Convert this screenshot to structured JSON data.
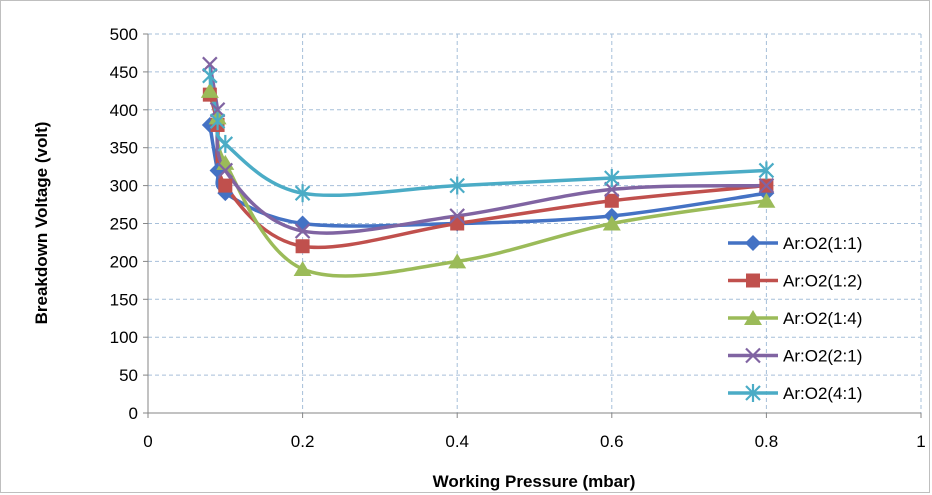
{
  "chart_data": {
    "type": "line",
    "title": "",
    "xlabel": "Working Pressure (mbar)",
    "ylabel": "Breakdown Voltage (volt)",
    "xlim": [
      0,
      1
    ],
    "ylim": [
      0,
      500
    ],
    "xticks": [
      0,
      0.2,
      0.4,
      0.6,
      0.8,
      1
    ],
    "yticks": [
      0,
      50,
      100,
      150,
      200,
      250,
      300,
      350,
      400,
      450,
      500
    ],
    "xtick_labels": [
      "0",
      "0.2",
      "0.4",
      "0.6",
      "0.8",
      "1"
    ],
    "ytick_labels": [
      "0",
      "50",
      "100",
      "150",
      "200",
      "250",
      "300",
      "350",
      "400",
      "450",
      "500"
    ],
    "grid": true,
    "smooth": true,
    "legend_position": "right",
    "series": [
      {
        "name": "Ar:O2(1:1)",
        "color": "#4472c4",
        "marker": "diamond",
        "x": [
          0.08,
          0.09,
          0.1,
          0.2,
          0.4,
          0.6,
          0.8
        ],
        "y": [
          380,
          320,
          290,
          250,
          250,
          260,
          290
        ]
      },
      {
        "name": "Ar:O2(1:2)",
        "color": "#c0504d",
        "marker": "square",
        "x": [
          0.08,
          0.09,
          0.1,
          0.2,
          0.4,
          0.6,
          0.8
        ],
        "y": [
          420,
          380,
          300,
          220,
          250,
          280,
          300
        ]
      },
      {
        "name": "Ar:O2(1:4)",
        "color": "#9bbb59",
        "marker": "triangle",
        "x": [
          0.08,
          0.09,
          0.1,
          0.2,
          0.4,
          0.6,
          0.8
        ],
        "y": [
          425,
          390,
          330,
          190,
          200,
          250,
          280
        ]
      },
      {
        "name": "Ar:O2(2:1)",
        "color": "#8064a2",
        "marker": "x",
        "x": [
          0.08,
          0.09,
          0.1,
          0.2,
          0.4,
          0.6,
          0.8
        ],
        "y": [
          460,
          400,
          320,
          240,
          260,
          295,
          300
        ]
      },
      {
        "name": "Ar:O2(4:1)",
        "color": "#4bacc6",
        "marker": "star",
        "x": [
          0.08,
          0.09,
          0.1,
          0.2,
          0.4,
          0.6,
          0.8
        ],
        "y": [
          445,
          385,
          355,
          290,
          300,
          310,
          320
        ]
      }
    ]
  }
}
